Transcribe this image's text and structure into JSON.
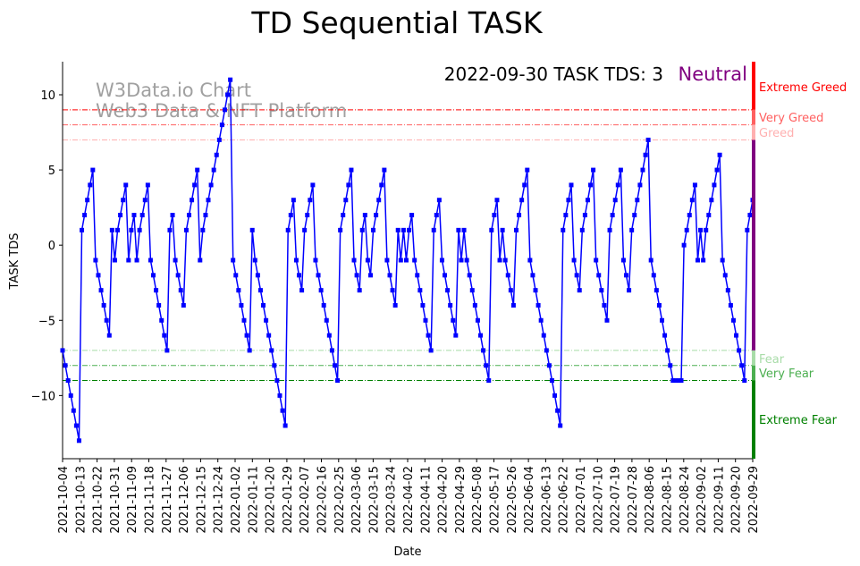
{
  "chart_data": {
    "type": "line",
    "title": "TD Sequential TASK",
    "xlabel": "Date",
    "ylabel": "TASK TDS",
    "ylim": [
      -14.2,
      12.2
    ],
    "yticks": [
      10,
      5,
      0,
      -5,
      -10
    ],
    "xtick_labels": [
      "2021-10-04",
      "2021-10-13",
      "2021-10-22",
      "2021-10-31",
      "2021-11-09",
      "2021-11-18",
      "2021-11-27",
      "2021-12-06",
      "2021-12-15",
      "2021-12-24",
      "2022-01-02",
      "2022-01-11",
      "2022-01-20",
      "2022-01-29",
      "2022-02-07",
      "2022-02-16",
      "2022-02-25",
      "2022-03-06",
      "2022-03-15",
      "2022-03-24",
      "2022-04-02",
      "2022-04-11",
      "2022-04-20",
      "2022-04-29",
      "2022-05-08",
      "2022-05-17",
      "2022-05-26",
      "2022-06-04",
      "2022-06-13",
      "2022-06-22",
      "2022-07-01",
      "2022-07-10",
      "2022-07-19",
      "2022-07-28",
      "2022-08-06",
      "2022-08-15",
      "2022-08-24",
      "2022-09-02",
      "2022-09-11",
      "2022-09-20",
      "2022-09-29"
    ],
    "series": [
      {
        "name": "TASK TDS",
        "color": "#0000ff",
        "start_date": "2021-10-04",
        "values": [
          -7,
          -8,
          -9,
          -10,
          -11,
          -12,
          -13,
          1,
          2,
          3,
          4,
          5,
          -1,
          -2,
          -3,
          -4,
          -5,
          -6,
          1,
          -1,
          1,
          2,
          3,
          4,
          -1,
          1,
          2,
          -1,
          1,
          2,
          3,
          4,
          -1,
          -2,
          -3,
          -4,
          -5,
          -6,
          -7,
          1,
          2,
          -1,
          -2,
          -3,
          -4,
          1,
          2,
          3,
          4,
          5,
          -1,
          1,
          2,
          3,
          4,
          5,
          6,
          7,
          8,
          9,
          10,
          11,
          -1,
          -2,
          -3,
          -4,
          -5,
          -6,
          -7,
          1,
          -1,
          -2,
          -3,
          -4,
          -5,
          -6,
          -7,
          -8,
          -9,
          -10,
          -11,
          -12,
          1,
          2,
          3,
          -1,
          -2,
          -3,
          1,
          2,
          3,
          4,
          -1,
          -2,
          -3,
          -4,
          -5,
          -6,
          -7,
          -8,
          -9,
          1,
          2,
          3,
          4,
          5,
          -1,
          -2,
          -3,
          1,
          2,
          -1,
          -2,
          1,
          2,
          3,
          4,
          5,
          -1,
          -2,
          -3,
          -4,
          1,
          -1,
          1,
          -1,
          1,
          2,
          -1,
          -2,
          -3,
          -4,
          -5,
          -6,
          -7,
          1,
          2,
          3,
          -1,
          -2,
          -3,
          -4,
          -5,
          -6,
          1,
          -1,
          1,
          -1,
          -2,
          -3,
          -4,
          -5,
          -6,
          -7,
          -8,
          -9,
          1,
          2,
          3,
          -1,
          1,
          -1,
          -2,
          -3,
          -4,
          1,
          2,
          3,
          4,
          5,
          -1,
          -2,
          -3,
          -4,
          -5,
          -6,
          -7,
          -8,
          -9,
          -10,
          -11,
          -12,
          1,
          2,
          3,
          4,
          -1,
          -2,
          -3,
          1,
          2,
          3,
          4,
          5,
          -1,
          -2,
          -3,
          -4,
          -5,
          1,
          2,
          3,
          4,
          5,
          -1,
          -2,
          -3,
          1,
          2,
          3,
          4,
          5,
          6,
          7,
          -1,
          -2,
          -3,
          -4,
          -5,
          -6,
          -7,
          -8,
          -9,
          -9,
          -9,
          -9,
          0,
          1,
          2,
          3,
          4,
          -1,
          1,
          -1,
          1,
          2,
          3,
          4,
          5,
          6,
          -1,
          -2,
          -3,
          -4,
          -5,
          -6,
          -7,
          -8,
          -9,
          1,
          2,
          3
        ]
      }
    ],
    "thresholds": [
      {
        "label": "Extreme Greed",
        "value": 9,
        "color": "#ff0000"
      },
      {
        "label": "Very Greed",
        "value": 8,
        "color": "#ff6060"
      },
      {
        "label": "Greed",
        "value": 7,
        "color": "#ffb0b0"
      },
      {
        "label": "Fear",
        "value": -7,
        "color": "#a8dca8"
      },
      {
        "label": "Very Fear",
        "value": -8,
        "color": "#4caf50"
      },
      {
        "label": "Extreme Fear",
        "value": -9,
        "color": "#008000"
      }
    ],
    "annotations": {
      "status_text": "2022-09-30 TASK TDS: 3",
      "sentiment": "Neutral",
      "sentiment_color": "#800080",
      "watermark_line1": "W3Data.io Chart",
      "watermark_line2": "Web3 Data & NFT Platform"
    }
  }
}
